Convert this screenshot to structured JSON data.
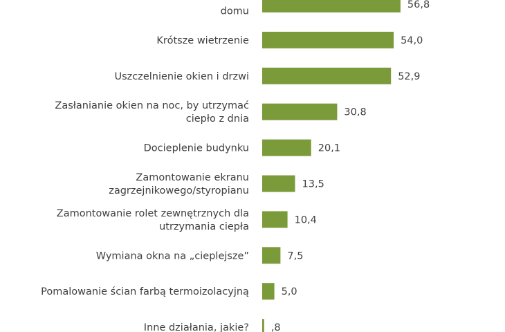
{
  "chart_data": {
    "type": "bar",
    "orientation": "horizontal",
    "bar_color": "#7b9a3a",
    "categories": [
      [
        "",
        "domu"
      ],
      [
        "Krótsze wietrzenie"
      ],
      [
        "Uszczelnienie okien i drzwi"
      ],
      [
        "Zasłanianie okien na noc, by utrzymać",
        "ciepło z dnia"
      ],
      [
        "Docieplenie budynku"
      ],
      [
        "Zamontowanie ekranu",
        "zagrzejnikowego/styropianu"
      ],
      [
        "Zamontowanie rolet zewnętrznych dla",
        "utrzymania ciepła"
      ],
      [
        "Wymiana okna na „cieplejsze”"
      ],
      [
        "Pomalowanie ścian farbą termoizolacyjną"
      ],
      [
        "Inne działania, jakie?"
      ]
    ],
    "values": [
      56.8,
      54.0,
      52.9,
      30.8,
      20.1,
      13.5,
      10.4,
      7.5,
      5.0,
      0.8
    ],
    "value_labels": [
      "56,8",
      "54,0",
      "52,9",
      "30,8",
      "20,1",
      "13,5",
      "10,4",
      "7,5",
      "5,0",
      ",8"
    ],
    "xlim": [
      0,
      100
    ],
    "grid": false
  }
}
